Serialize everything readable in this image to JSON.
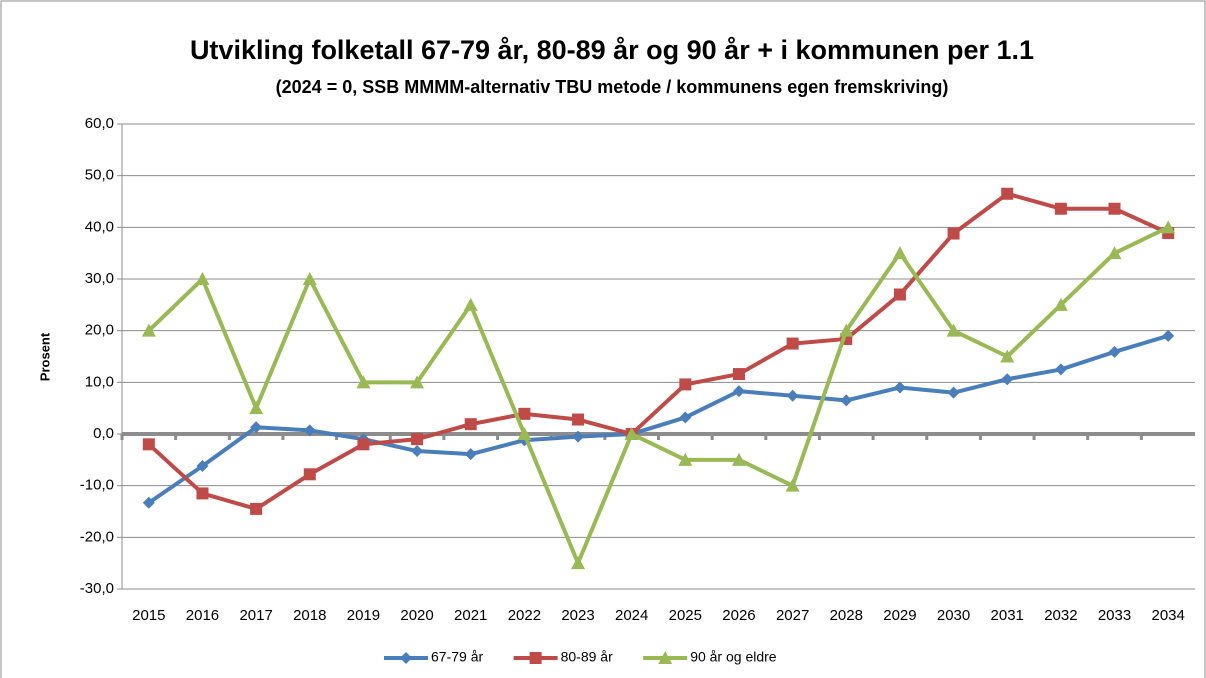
{
  "chart_data": {
    "type": "line",
    "title": "Utvikling folketall 67-79 år, 80-89 år og 90 år + i kommunen per 1.1",
    "subtitle": "(2024 = 0, SSB MMMM-alternativ TBU metode / kommunens egen fremskriving)",
    "y_label": "Prosent",
    "categories": [
      "2015",
      "2016",
      "2017",
      "2018",
      "2019",
      "2020",
      "2021",
      "2022",
      "2023",
      "2024",
      "2025",
      "2026",
      "2027",
      "2028",
      "2029",
      "2030",
      "2031",
      "2032",
      "2033",
      "2034"
    ],
    "series": [
      {
        "name": "67-79 år",
        "color": "#4a7ebb",
        "marker": "diamond",
        "values": [
          -13.3,
          -6.2,
          1.3,
          0.7,
          -1.0,
          -3.3,
          -3.9,
          -1.2,
          -0.5,
          0,
          3.2,
          8.3,
          7.4,
          6.5,
          9.0,
          8.0,
          10.6,
          12.5,
          15.9,
          19.0
        ]
      },
      {
        "name": "80-89 år",
        "color": "#be4b48",
        "marker": "square",
        "values": [
          -2.0,
          -11.5,
          -14.5,
          -7.8,
          -2.0,
          -1.0,
          1.9,
          3.9,
          2.8,
          0,
          9.6,
          11.6,
          17.5,
          18.4,
          27.0,
          38.8,
          46.5,
          43.6,
          43.6,
          38.9
        ]
      },
      {
        "name": "90 år og eldre",
        "color": "#98b954",
        "marker": "triangle",
        "values": [
          20,
          30,
          5,
          30,
          10,
          10,
          25,
          0,
          -25,
          0,
          -5,
          -5,
          -10,
          20,
          35,
          20,
          15,
          25,
          35,
          40
        ]
      }
    ],
    "ylim": [
      -30,
      60
    ],
    "yticks": [
      {
        "value": -30,
        "label": "-30,0"
      },
      {
        "value": -20,
        "label": "-20,0"
      },
      {
        "value": -10,
        "label": "-10,0"
      },
      {
        "value": 0,
        "label": "0,0"
      },
      {
        "value": 10,
        "label": "10,0"
      },
      {
        "value": 20,
        "label": "20,0"
      },
      {
        "value": 30,
        "label": "30,0"
      },
      {
        "value": 40,
        "label": "40,0"
      },
      {
        "value": 50,
        "label": "50,0"
      },
      {
        "value": 60,
        "label": "60,0"
      }
    ],
    "grid": true,
    "legend": "bottom"
  }
}
